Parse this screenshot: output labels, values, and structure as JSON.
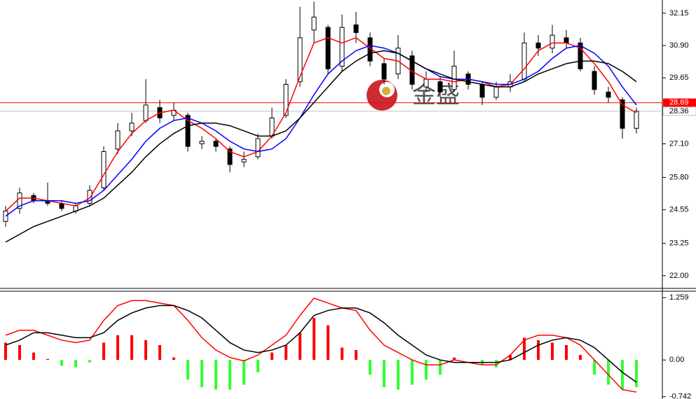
{
  "chart_data": [
    {
      "type": "candlestick",
      "watermark": "金盛",
      "open": [
        24.1,
        24.6,
        25.1,
        24.9,
        24.8,
        24.5,
        24.8,
        25.4,
        26.9,
        27.6,
        28.0,
        28.5,
        28.2,
        28.2,
        27.1,
        27.2,
        26.9,
        26.4,
        26.6,
        27.4,
        28.2,
        29.5,
        31.5,
        31.6,
        30.1,
        31.7,
        31.2,
        30.2,
        29.8,
        30.5,
        29.3,
        29.5,
        29.2,
        29.8,
        29.4,
        28.9,
        29.3,
        29.6,
        31.0,
        30.8,
        31.2,
        31.0,
        29.9,
        29.1,
        28.8,
        27.7
      ],
      "high": [
        24.7,
        25.4,
        25.2,
        25.6,
        24.9,
        24.8,
        25.5,
        27.0,
        27.9,
        28.3,
        29.6,
        28.8,
        28.7,
        28.3,
        27.4,
        27.3,
        27.0,
        26.8,
        27.5,
        28.5,
        29.6,
        32.4,
        32.6,
        31.7,
        32.1,
        32.2,
        31.4,
        30.4,
        31.3,
        30.7,
        29.9,
        29.7,
        30.7,
        29.9,
        29.5,
        29.5,
        29.8,
        31.4,
        31.3,
        31.7,
        31.5,
        31.2,
        30.1,
        29.3,
        28.9,
        28.5
      ],
      "low": [
        23.9,
        24.4,
        24.8,
        24.7,
        24.5,
        24.4,
        24.7,
        25.3,
        26.7,
        27.4,
        27.9,
        27.9,
        28.0,
        26.8,
        26.9,
        26.8,
        26.0,
        26.2,
        26.5,
        27.3,
        28.1,
        29.3,
        31.0,
        29.8,
        29.9,
        31.0,
        30.1,
        29.4,
        29.6,
        29.2,
        29.1,
        28.9,
        29.1,
        29.2,
        28.6,
        28.8,
        29.1,
        29.5,
        30.5,
        30.6,
        30.8,
        29.9,
        29.0,
        28.7,
        27.3,
        27.5
      ],
      "close": [
        24.5,
        25.2,
        24.9,
        24.8,
        24.6,
        24.7,
        25.3,
        26.8,
        27.6,
        27.9,
        28.6,
        28.1,
        28.4,
        27.0,
        27.2,
        27.0,
        26.3,
        26.5,
        27.3,
        28.1,
        29.4,
        31.2,
        32.0,
        30.0,
        31.6,
        31.4,
        30.3,
        29.6,
        30.8,
        29.4,
        29.6,
        29.1,
        30.1,
        29.4,
        28.9,
        29.3,
        29.5,
        31.0,
        30.8,
        31.3,
        31.0,
        30.0,
        29.2,
        28.9,
        27.7,
        28.36
      ],
      "up_color": "#ffffff",
      "down_color": "#000000",
      "candle_border": "#000000",
      "series": [
        {
          "color": "#ff0000",
          "values": [
            24.5,
            25.0,
            25.0,
            24.9,
            24.8,
            24.7,
            25.0,
            25.9,
            26.8,
            27.5,
            28.0,
            28.3,
            28.4,
            28.0,
            27.7,
            27.3,
            26.8,
            26.6,
            26.8,
            27.4,
            28.3,
            29.7,
            31.0,
            31.2,
            31.0,
            31.2,
            30.8,
            30.4,
            30.3,
            29.9,
            29.6,
            29.6,
            29.5,
            29.6,
            29.5,
            29.3,
            29.4,
            30.0,
            30.7,
            31.0,
            31.0,
            30.8,
            30.2,
            29.5,
            28.6,
            28.3
          ]
        },
        {
          "color": "#0000ff",
          "values": [
            24.3,
            24.7,
            24.9,
            24.9,
            24.9,
            24.8,
            24.9,
            25.3,
            25.9,
            26.5,
            27.2,
            27.7,
            28.0,
            28.1,
            27.9,
            27.6,
            27.2,
            26.9,
            26.8,
            26.9,
            27.3,
            28.1,
            29.0,
            29.8,
            30.3,
            30.7,
            30.9,
            30.8,
            30.6,
            30.3,
            30.0,
            29.7,
            29.6,
            29.6,
            29.5,
            29.4,
            29.4,
            29.6,
            29.9,
            30.4,
            30.8,
            30.9,
            30.6,
            30.1,
            29.3,
            28.6
          ]
        },
        {
          "color": "#000000",
          "values": [
            23.3,
            23.6,
            23.9,
            24.1,
            24.3,
            24.5,
            24.7,
            25.0,
            25.5,
            26.0,
            26.6,
            27.1,
            27.5,
            27.8,
            27.9,
            27.9,
            27.8,
            27.6,
            27.4,
            27.4,
            27.6,
            28.1,
            28.7,
            29.3,
            29.9,
            30.3,
            30.6,
            30.7,
            30.6,
            30.3,
            30.0,
            29.8,
            29.6,
            29.5,
            29.4,
            29.3,
            29.3,
            29.5,
            29.8,
            30.0,
            30.2,
            30.3,
            30.3,
            30.2,
            29.9,
            29.5
          ]
        }
      ],
      "hline": {
        "value": 28.69,
        "label": "28.69",
        "color": "#ff0000"
      },
      "last_price": {
        "value": 28.36,
        "label": "28.36",
        "color": "#c0c0c0"
      },
      "ylim": [
        21.51,
        32.66
      ],
      "yticks": [
        {
          "value": 32.15,
          "label": "32.15"
        },
        {
          "value": 30.9,
          "label": "30.90"
        },
        {
          "value": 29.65,
          "label": "29.65"
        },
        {
          "value": 27.1,
          "label": "27.10"
        },
        {
          "value": 25.8,
          "label": "25.80"
        },
        {
          "value": 24.55,
          "label": "24.55"
        },
        {
          "value": 23.25,
          "label": "23.25"
        },
        {
          "value": 22.0,
          "label": "22.00"
        }
      ]
    },
    {
      "type": "macd",
      "histogram": [
        0.35,
        0.3,
        0.15,
        0.02,
        -0.12,
        -0.15,
        -0.05,
        0.35,
        0.5,
        0.5,
        0.4,
        0.3,
        0.05,
        -0.4,
        -0.55,
        -0.6,
        -0.6,
        -0.5,
        -0.25,
        0.15,
        0.3,
        0.55,
        0.85,
        0.7,
        0.25,
        0.2,
        -0.3,
        -0.55,
        -0.6,
        -0.5,
        -0.4,
        -0.3,
        0.05,
        0.0,
        -0.1,
        -0.15,
        0.1,
        0.45,
        0.4,
        0.35,
        0.3,
        0.1,
        -0.3,
        -0.5,
        -0.6,
        -0.55
      ],
      "positive_color": "#ff0000",
      "negative_color": "#33ff33",
      "series": [
        {
          "color": "#ff0000",
          "values": [
            0.5,
            0.6,
            0.6,
            0.5,
            0.4,
            0.35,
            0.4,
            0.8,
            1.1,
            1.2,
            1.2,
            1.15,
            1.1,
            0.8,
            0.45,
            0.2,
            0.05,
            -0.02,
            0.1,
            0.3,
            0.5,
            0.9,
            1.25,
            1.15,
            1.05,
            1.0,
            0.6,
            0.3,
            0.15,
            0.0,
            -0.1,
            -0.1,
            0.0,
            -0.05,
            -0.1,
            -0.1,
            0.1,
            0.4,
            0.5,
            0.5,
            0.45,
            0.3,
            0.0,
            -0.3,
            -0.6,
            -0.65
          ]
        },
        {
          "color": "#000000",
          "values": [
            0.3,
            0.4,
            0.55,
            0.55,
            0.5,
            0.45,
            0.45,
            0.55,
            0.8,
            0.95,
            1.05,
            1.1,
            1.1,
            1.0,
            0.85,
            0.6,
            0.35,
            0.2,
            0.15,
            0.2,
            0.3,
            0.55,
            0.9,
            1.0,
            1.05,
            1.05,
            0.95,
            0.75,
            0.5,
            0.3,
            0.1,
            0.0,
            -0.05,
            -0.05,
            -0.05,
            -0.05,
            0.0,
            0.15,
            0.3,
            0.4,
            0.45,
            0.4,
            0.25,
            0.0,
            -0.25,
            -0.45
          ]
        }
      ],
      "ylim": [
        -0.79,
        1.39
      ],
      "yticks": [
        {
          "value": 1.259,
          "label": "1.259"
        },
        {
          "value": 0,
          "label": "0.00"
        },
        {
          "value": -0.742,
          "label": "-0.742"
        }
      ]
    }
  ]
}
